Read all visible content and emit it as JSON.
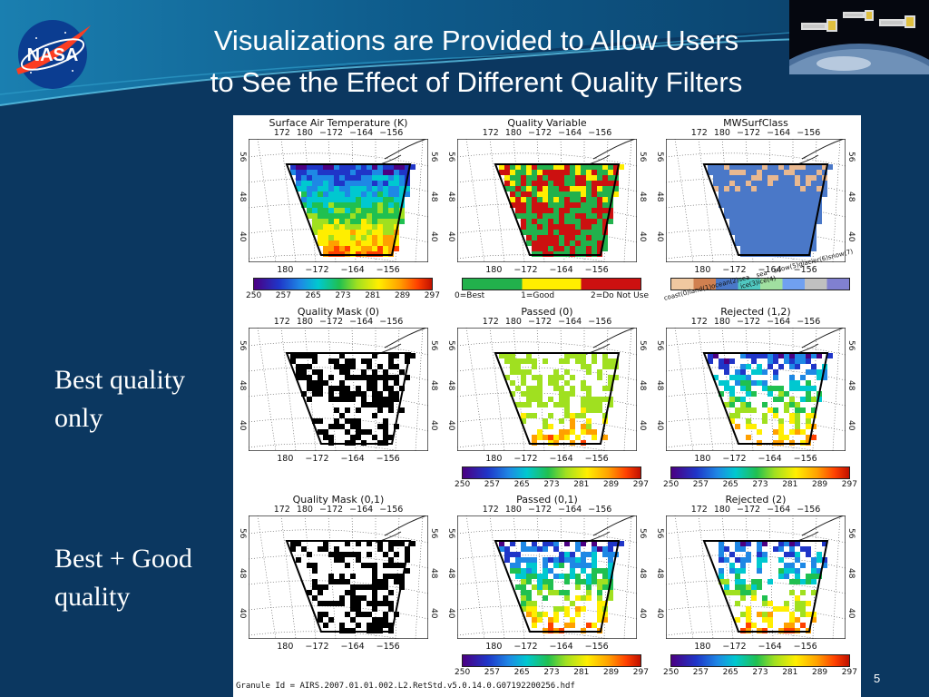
{
  "slide": {
    "title_line1": "Visualizations are Provided to Allow Users",
    "title_line2": "to See the Effect of Different Quality Filters",
    "page_number": "5"
  },
  "labels": {
    "row2_line1": "Best quality",
    "row2_line2": "only",
    "row3_line1": "Best + Good",
    "row3_line2": "quality"
  },
  "figure": {
    "granule": "Granule Id = AIRS.2007.01.01.002.L2.RetStd.v5.0.14.0.G07192200256.hdf",
    "top_ticks": "172  180  −172 −164 −156",
    "bottom_ticks": "180  −172  −164  −156",
    "lat_ticks": [
      "56",
      "48",
      "40"
    ],
    "temp_ticks": [
      "250",
      "257",
      "265",
      "273",
      "281",
      "289",
      "297"
    ],
    "quality_legend": [
      "0=Best",
      "1=Good",
      "2=Do Not Use"
    ],
    "surf_legend_a": [
      "coast(0)",
      "land(1)",
      "ocean(2)",
      "sea ice(3)",
      "sea ice(4)",
      "snow(5)",
      "glacier(6)",
      "snow(7)"
    ],
    "panels": [
      "Surface Air Temperature (K)",
      "Quality Variable",
      "MWSurfClass",
      "Quality Mask (0)",
      "Passed (0)",
      "Rejected (1,2)",
      "Quality Mask (0,1)",
      "Passed (0,1)",
      "Rejected (2)"
    ]
  },
  "colors": {
    "background": "#0b3760",
    "quality_best": "#22b14c",
    "quality_good": "#ffee00",
    "quality_do_not_use": "#cc1010",
    "surf_ocean": "#4a78c8"
  }
}
